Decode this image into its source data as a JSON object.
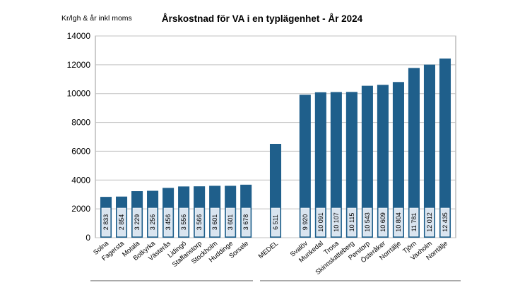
{
  "chart_data": {
    "type": "bar",
    "title": "Årskostnad för VA i en typlägenhet - År 2024",
    "ylabel": "Kr/lgh & år inkl moms",
    "xlabel": "",
    "ylim": [
      0,
      14000
    ],
    "yticks": [
      0,
      2000,
      4000,
      6000,
      8000,
      10000,
      12000,
      14000
    ],
    "grid": true,
    "legend": "none",
    "bar_color": "#1f5f8b",
    "label_box_color": "#d9e4ef",
    "categories": [
      "Solna",
      "Fagersta",
      "Motala",
      "Botkyrka",
      "Västerås",
      "Lidingö",
      "Staffanstorp",
      "Stockholm",
      "Huddinge",
      "Sorsele",
      "MEDEL",
      "Svalöv",
      "Munkedal",
      "Trosa",
      "Skinnskatteberg",
      "Perstorp",
      "Österåker",
      "Norrtälje",
      "Tjörn",
      "Vaxholm",
      "Norrtälje"
    ],
    "group_gap_after": [
      9,
      10
    ],
    "values": [
      2833,
      2854,
      3229,
      3256,
      3456,
      3556,
      3566,
      3601,
      3601,
      3678,
      6511,
      9920,
      10091,
      10107,
      10115,
      10543,
      10609,
      10804,
      11781,
      12012,
      12435
    ],
    "value_labels": [
      "2 833",
      "2 854",
      "3 229",
      "3 256",
      "3 456",
      "3 556",
      "3 566",
      "3 601",
      "3 601",
      "3 678",
      "6 511",
      "9 920",
      "10 091",
      "10 107",
      "10 115",
      "10 543",
      "10 609",
      "10 804",
      "11 781",
      "12 012",
      "12 435"
    ]
  }
}
